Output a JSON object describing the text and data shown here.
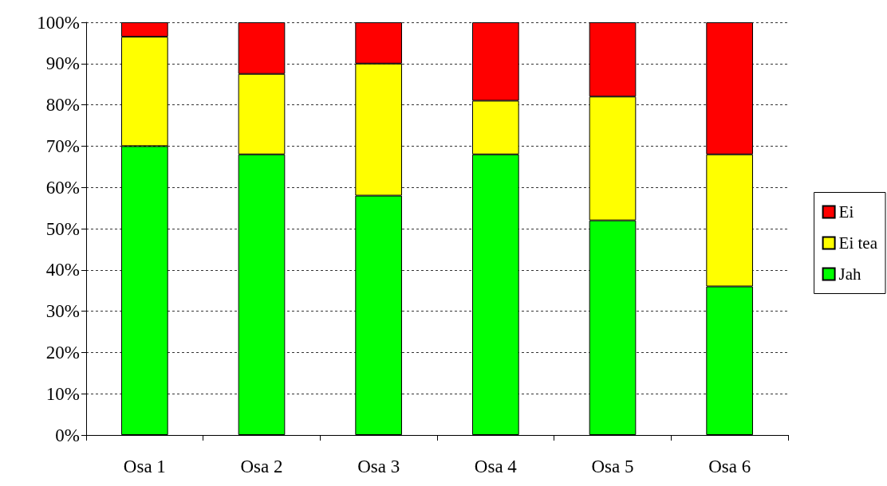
{
  "chart_data": {
    "type": "bar",
    "stacked": true,
    "categories": [
      "Osa 1",
      "Osa 2",
      "Osa 3",
      "Osa 4",
      "Osa 5",
      "Osa 6"
    ],
    "series": [
      {
        "name": "Jah",
        "color": "#00ff00",
        "values": [
          70,
          68,
          58,
          68,
          52,
          36
        ]
      },
      {
        "name": "Ei tea",
        "color": "#ffff00",
        "values": [
          26.5,
          19.5,
          32,
          13,
          30,
          32
        ]
      },
      {
        "name": "Ei",
        "color": "#ff0000",
        "values": [
          3.5,
          12.5,
          10,
          19,
          18,
          32
        ]
      }
    ],
    "ylim": [
      0,
      100
    ],
    "yticks": [
      {
        "value": 0,
        "label": "0%"
      },
      {
        "value": 10,
        "label": "10%"
      },
      {
        "value": 20,
        "label": "20%"
      },
      {
        "value": 30,
        "label": "30%"
      },
      {
        "value": 40,
        "label": "40%"
      },
      {
        "value": 50,
        "label": "50%"
      },
      {
        "value": 60,
        "label": "60%"
      },
      {
        "value": 70,
        "label": "70%"
      },
      {
        "value": 80,
        "label": "80%"
      },
      {
        "value": 90,
        "label": "90%"
      },
      {
        "value": 100,
        "label": "100%"
      }
    ],
    "grid": "y",
    "legend": "right"
  }
}
